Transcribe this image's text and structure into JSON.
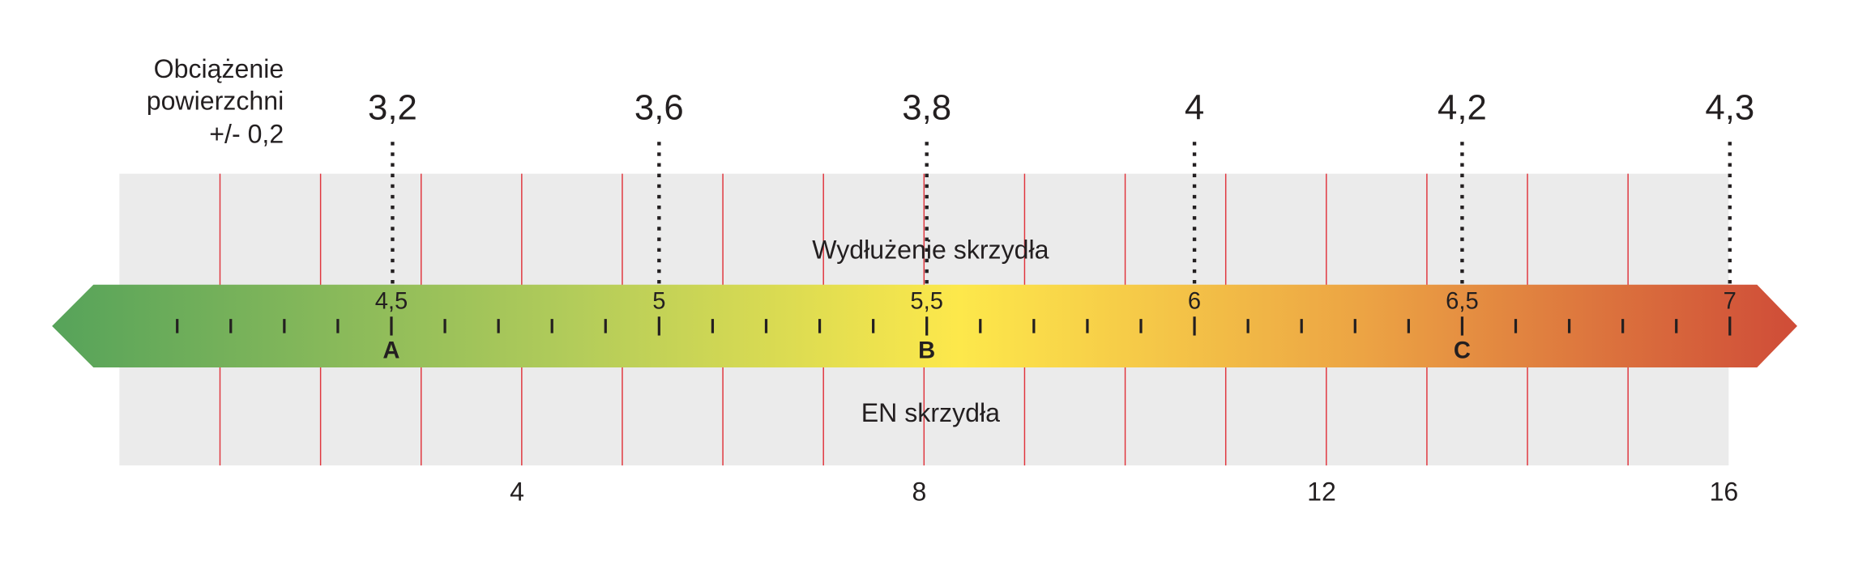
{
  "load_label": [
    "Obciążenie",
    "powierzchni",
    "+/- 0,2"
  ],
  "load_values": [
    "3,2",
    "3,6",
    "3,8",
    "4",
    "4,2",
    "4,3"
  ],
  "elongation_label": "Wydłużenie skrzydła",
  "elongation_ticks": [
    "4,5",
    "5",
    "5,5",
    "6",
    "6,5",
    "7"
  ],
  "classes": [
    "A",
    "B",
    "C"
  ],
  "en_label": "EN skrzydła",
  "en_ticks": [
    4,
    8,
    12,
    16
  ]
}
